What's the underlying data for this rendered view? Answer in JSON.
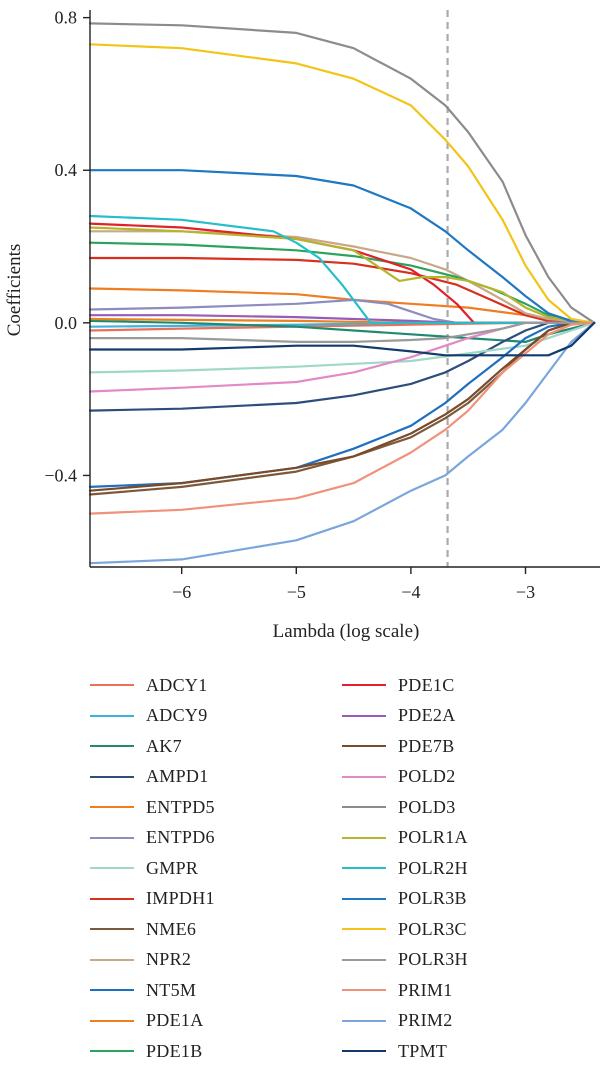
{
  "chart_data": {
    "type": "line",
    "title": "",
    "xlabel": "Lambda (log scale)",
    "ylabel": "Coefficients",
    "xlim": [
      -6.8,
      -2.35
    ],
    "ylim": [
      -0.64,
      0.82
    ],
    "xticks": [
      -6,
      -5,
      -4,
      -3
    ],
    "xtick_labels": [
      "−6",
      "−5",
      "−4",
      "−3"
    ],
    "yticks": [
      0.8,
      0.4,
      0.0,
      -0.4
    ],
    "ytick_labels": [
      "0.8",
      "0.4",
      "0.0",
      "−0.4"
    ],
    "vline": {
      "x": -3.68,
      "color": "#aaaaaa",
      "style": "dashed"
    },
    "series": [
      {
        "name": "ADCY1",
        "color": "#e8715a",
        "points": [
          [
            -6.8,
            -0.02
          ],
          [
            -6,
            -0.015
          ],
          [
            -5,
            -0.01
          ],
          [
            -4,
            -0.005
          ],
          [
            -3,
            0
          ],
          [
            -2.4,
            0
          ]
        ]
      },
      {
        "name": "ADCY9",
        "color": "#3fb3df",
        "points": [
          [
            -6.8,
            -0.01
          ],
          [
            -5,
            -0.005
          ],
          [
            -4,
            0
          ],
          [
            -2.4,
            0
          ]
        ]
      },
      {
        "name": "AK7",
        "color": "#1f8a70",
        "points": [
          [
            -6.8,
            0.005
          ],
          [
            -6,
            0
          ],
          [
            -5,
            -0.01
          ],
          [
            -4,
            -0.03
          ],
          [
            -3.5,
            -0.04
          ],
          [
            -3,
            -0.05
          ],
          [
            -2.8,
            -0.03
          ],
          [
            -2.4,
            0
          ]
        ]
      },
      {
        "name": "AMPD1",
        "color": "#2e4d7a",
        "points": [
          [
            -6.8,
            -0.23
          ],
          [
            -6,
            -0.225
          ],
          [
            -5,
            -0.21
          ],
          [
            -4.5,
            -0.19
          ],
          [
            -4,
            -0.16
          ],
          [
            -3.7,
            -0.13
          ],
          [
            -3.5,
            -0.1
          ],
          [
            -3.2,
            -0.05
          ],
          [
            -3,
            -0.02
          ],
          [
            -2.8,
            0
          ],
          [
            -2.4,
            0
          ]
        ]
      },
      {
        "name": "ENTPD5",
        "color": "#ef7d22",
        "points": [
          [
            -6.8,
            0.09
          ],
          [
            -6,
            0.085
          ],
          [
            -5,
            0.075
          ],
          [
            -4.5,
            0.06
          ],
          [
            -4,
            0.05
          ],
          [
            -3.5,
            0.04
          ],
          [
            -3,
            0.02
          ],
          [
            -2.8,
            0.005
          ],
          [
            -2.4,
            0
          ]
        ]
      },
      {
        "name": "ENTPD6",
        "color": "#8c8cbf",
        "points": [
          [
            -6.8,
            0.035
          ],
          [
            -6,
            0.04
          ],
          [
            -5,
            0.05
          ],
          [
            -4.5,
            0.06
          ],
          [
            -4.2,
            0.05
          ],
          [
            -4,
            0.03
          ],
          [
            -3.8,
            0.01
          ],
          [
            -3.6,
            0
          ],
          [
            -2.4,
            0
          ]
        ]
      },
      {
        "name": "GMPR",
        "color": "#9fd8c6",
        "points": [
          [
            -6.8,
            -0.13
          ],
          [
            -6,
            -0.125
          ],
          [
            -5,
            -0.115
          ],
          [
            -4,
            -0.1
          ],
          [
            -3.5,
            -0.08
          ],
          [
            -3,
            -0.06
          ],
          [
            -2.8,
            -0.04
          ],
          [
            -2.6,
            -0.02
          ],
          [
            -2.4,
            0
          ]
        ]
      },
      {
        "name": "IMPDH1",
        "color": "#d7301f",
        "points": [
          [
            -6.8,
            0.17
          ],
          [
            -6,
            0.17
          ],
          [
            -5,
            0.165
          ],
          [
            -4.5,
            0.155
          ],
          [
            -4,
            0.13
          ],
          [
            -3.6,
            0.1
          ],
          [
            -3.3,
            0.06
          ],
          [
            -3,
            0.02
          ],
          [
            -2.8,
            0.005
          ],
          [
            -2.4,
            0
          ]
        ]
      },
      {
        "name": "NME6",
        "color": "#7a5a3a",
        "points": [
          [
            -6.8,
            -0.45
          ],
          [
            -6,
            -0.43
          ],
          [
            -5,
            -0.39
          ],
          [
            -4.5,
            -0.35
          ],
          [
            -4,
            -0.3
          ],
          [
            -3.7,
            -0.25
          ],
          [
            -3.5,
            -0.21
          ],
          [
            -3.2,
            -0.13
          ],
          [
            -3,
            -0.07
          ],
          [
            -2.8,
            -0.02
          ],
          [
            -2.6,
            0
          ],
          [
            -2.4,
            0
          ]
        ]
      },
      {
        "name": "NPR2",
        "color": "#c8a88a",
        "points": [
          [
            -6.8,
            0.24
          ],
          [
            -6,
            0.24
          ],
          [
            -5,
            0.225
          ],
          [
            -4.5,
            0.2
          ],
          [
            -4,
            0.17
          ],
          [
            -3.7,
            0.14
          ],
          [
            -3.5,
            0.11
          ],
          [
            -3.2,
            0.06
          ],
          [
            -3,
            0.025
          ],
          [
            -2.8,
            0.01
          ],
          [
            -2.4,
            0
          ]
        ]
      },
      {
        "name": "NT5M",
        "color": "#1f6fbf",
        "points": [
          [
            -6.8,
            -0.43
          ],
          [
            -6,
            -0.42
          ],
          [
            -5,
            -0.38
          ],
          [
            -4.5,
            -0.33
          ],
          [
            -4,
            -0.27
          ],
          [
            -3.7,
            -0.21
          ],
          [
            -3.5,
            -0.16
          ],
          [
            -3.2,
            -0.09
          ],
          [
            -3,
            -0.04
          ],
          [
            -2.8,
            -0.01
          ],
          [
            -2.6,
            0
          ],
          [
            -2.4,
            0
          ]
        ]
      },
      {
        "name": "PDE1A",
        "color": "#e8831f",
        "points": [
          [
            -6.8,
            0.01
          ],
          [
            -5,
            0.005
          ],
          [
            -4,
            0
          ],
          [
            -2.4,
            0
          ]
        ]
      },
      {
        "name": "PDE1B",
        "color": "#2ca25f",
        "points": [
          [
            -6.8,
            0.21
          ],
          [
            -6,
            0.205
          ],
          [
            -5,
            0.19
          ],
          [
            -4.5,
            0.175
          ],
          [
            -4,
            0.15
          ],
          [
            -3.6,
            0.12
          ],
          [
            -3.3,
            0.09
          ],
          [
            -3,
            0.05
          ],
          [
            -2.8,
            0.02
          ],
          [
            -2.6,
            0.005
          ],
          [
            -2.4,
            0
          ]
        ]
      },
      {
        "name": "PDE1C",
        "color": "#e0202a",
        "points": [
          [
            -6.8,
            0.26
          ],
          [
            -6,
            0.25
          ],
          [
            -5,
            0.22
          ],
          [
            -4.5,
            0.19
          ],
          [
            -4,
            0.14
          ],
          [
            -3.8,
            0.1
          ],
          [
            -3.6,
            0.05
          ],
          [
            -3.45,
            0
          ],
          [
            -2.4,
            0
          ]
        ]
      },
      {
        "name": "PDE2A",
        "color": "#9a5ab8",
        "points": [
          [
            -6.8,
            0.02
          ],
          [
            -6,
            0.02
          ],
          [
            -5,
            0.015
          ],
          [
            -4.5,
            0.01
          ],
          [
            -4,
            0.005
          ],
          [
            -3.6,
            0
          ],
          [
            -2.4,
            0
          ]
        ]
      },
      {
        "name": "PDE7B",
        "color": "#7a4a2a",
        "points": [
          [
            -6.8,
            -0.44
          ],
          [
            -6,
            -0.42
          ],
          [
            -5,
            -0.38
          ],
          [
            -4.5,
            -0.35
          ],
          [
            -4,
            -0.29
          ],
          [
            -3.7,
            -0.24
          ],
          [
            -3.5,
            -0.2
          ],
          [
            -3.2,
            -0.12
          ],
          [
            -3,
            -0.07
          ],
          [
            -2.8,
            -0.02
          ],
          [
            -2.6,
            0
          ],
          [
            -2.4,
            0
          ]
        ]
      },
      {
        "name": "POLD2",
        "color": "#e389c6",
        "points": [
          [
            -6.8,
            -0.18
          ],
          [
            -6,
            -0.17
          ],
          [
            -5,
            -0.155
          ],
          [
            -4.5,
            -0.13
          ],
          [
            -4,
            -0.09
          ],
          [
            -3.7,
            -0.06
          ],
          [
            -3.5,
            -0.04
          ],
          [
            -3.2,
            -0.015
          ],
          [
            -3,
            0
          ],
          [
            -2.4,
            0
          ]
        ]
      },
      {
        "name": "POLD3",
        "color": "#8c8c8c",
        "points": [
          [
            -6.8,
            0.785
          ],
          [
            -6,
            0.78
          ],
          [
            -5,
            0.76
          ],
          [
            -4.5,
            0.72
          ],
          [
            -4,
            0.64
          ],
          [
            -3.7,
            0.57
          ],
          [
            -3.5,
            0.5
          ],
          [
            -3.2,
            0.37
          ],
          [
            -3,
            0.23
          ],
          [
            -2.8,
            0.12
          ],
          [
            -2.6,
            0.04
          ],
          [
            -2.4,
            0
          ]
        ]
      },
      {
        "name": "POLR1A",
        "color": "#b5b52a",
        "points": [
          [
            -6.8,
            0.25
          ],
          [
            -6,
            0.24
          ],
          [
            -5,
            0.22
          ],
          [
            -4.5,
            0.19
          ],
          [
            -4.3,
            0.15
          ],
          [
            -4.1,
            0.11
          ],
          [
            -3.9,
            0.12
          ],
          [
            -3.7,
            0.12
          ],
          [
            -3.5,
            0.11
          ],
          [
            -3.2,
            0.08
          ],
          [
            -3,
            0.04
          ],
          [
            -2.8,
            0.015
          ],
          [
            -2.4,
            0
          ]
        ]
      },
      {
        "name": "POLR2H",
        "color": "#26bfc9",
        "points": [
          [
            -6.8,
            0.28
          ],
          [
            -6,
            0.27
          ],
          [
            -5.2,
            0.24
          ],
          [
            -5,
            0.21
          ],
          [
            -4.8,
            0.17
          ],
          [
            -4.6,
            0.1
          ],
          [
            -4.45,
            0.04
          ],
          [
            -4.35,
            0
          ],
          [
            -2.4,
            0
          ]
        ]
      },
      {
        "name": "POLR3B",
        "color": "#1f78c1",
        "points": [
          [
            -6.8,
            0.4
          ],
          [
            -6,
            0.4
          ],
          [
            -5,
            0.385
          ],
          [
            -4.5,
            0.36
          ],
          [
            -4,
            0.3
          ],
          [
            -3.7,
            0.24
          ],
          [
            -3.5,
            0.19
          ],
          [
            -3.2,
            0.12
          ],
          [
            -3,
            0.07
          ],
          [
            -2.8,
            0.025
          ],
          [
            -2.6,
            0.005
          ],
          [
            -2.4,
            0
          ]
        ]
      },
      {
        "name": "POLR3C",
        "color": "#f2c418",
        "points": [
          [
            -6.8,
            0.73
          ],
          [
            -6,
            0.72
          ],
          [
            -5,
            0.68
          ],
          [
            -4.5,
            0.64
          ],
          [
            -4,
            0.57
          ],
          [
            -3.7,
            0.48
          ],
          [
            -3.5,
            0.41
          ],
          [
            -3.2,
            0.27
          ],
          [
            -3,
            0.15
          ],
          [
            -2.8,
            0.06
          ],
          [
            -2.6,
            0.01
          ],
          [
            -2.4,
            0
          ]
        ]
      },
      {
        "name": "POLR3H",
        "color": "#9a9a9a",
        "points": [
          [
            -6.8,
            -0.04
          ],
          [
            -6,
            -0.04
          ],
          [
            -5,
            -0.05
          ],
          [
            -4.5,
            -0.05
          ],
          [
            -4,
            -0.045
          ],
          [
            -3.7,
            -0.04
          ],
          [
            -3.5,
            -0.03
          ],
          [
            -3.2,
            -0.015
          ],
          [
            -3,
            0
          ],
          [
            -2.4,
            0
          ]
        ]
      },
      {
        "name": "PRIM1",
        "color": "#f0927a",
        "points": [
          [
            -6.8,
            -0.5
          ],
          [
            -6,
            -0.49
          ],
          [
            -5,
            -0.46
          ],
          [
            -4.5,
            -0.42
          ],
          [
            -4,
            -0.34
          ],
          [
            -3.7,
            -0.28
          ],
          [
            -3.5,
            -0.23
          ],
          [
            -3.2,
            -0.13
          ],
          [
            -3,
            -0.08
          ],
          [
            -2.8,
            -0.03
          ],
          [
            -2.6,
            -0.005
          ],
          [
            -2.4,
            0
          ]
        ]
      },
      {
        "name": "PRIM2",
        "color": "#7aa6dc",
        "points": [
          [
            -6.8,
            -0.63
          ],
          [
            -6,
            -0.62
          ],
          [
            -5,
            -0.57
          ],
          [
            -4.5,
            -0.52
          ],
          [
            -4,
            -0.44
          ],
          [
            -3.7,
            -0.4
          ],
          [
            -3.5,
            -0.35
          ],
          [
            -3.2,
            -0.28
          ],
          [
            -3,
            -0.21
          ],
          [
            -2.8,
            -0.13
          ],
          [
            -2.6,
            -0.05
          ],
          [
            -2.4,
            0
          ]
        ]
      },
      {
        "name": "TPMT",
        "color": "#123a6b",
        "points": [
          [
            -6.8,
            -0.07
          ],
          [
            -6,
            -0.07
          ],
          [
            -5,
            -0.06
          ],
          [
            -4.5,
            -0.06
          ],
          [
            -4,
            -0.075
          ],
          [
            -3.7,
            -0.085
          ],
          [
            -3.5,
            -0.085
          ],
          [
            -3,
            -0.085
          ],
          [
            -2.8,
            -0.085
          ],
          [
            -2.6,
            -0.06
          ],
          [
            -2.4,
            0
          ]
        ]
      }
    ]
  }
}
